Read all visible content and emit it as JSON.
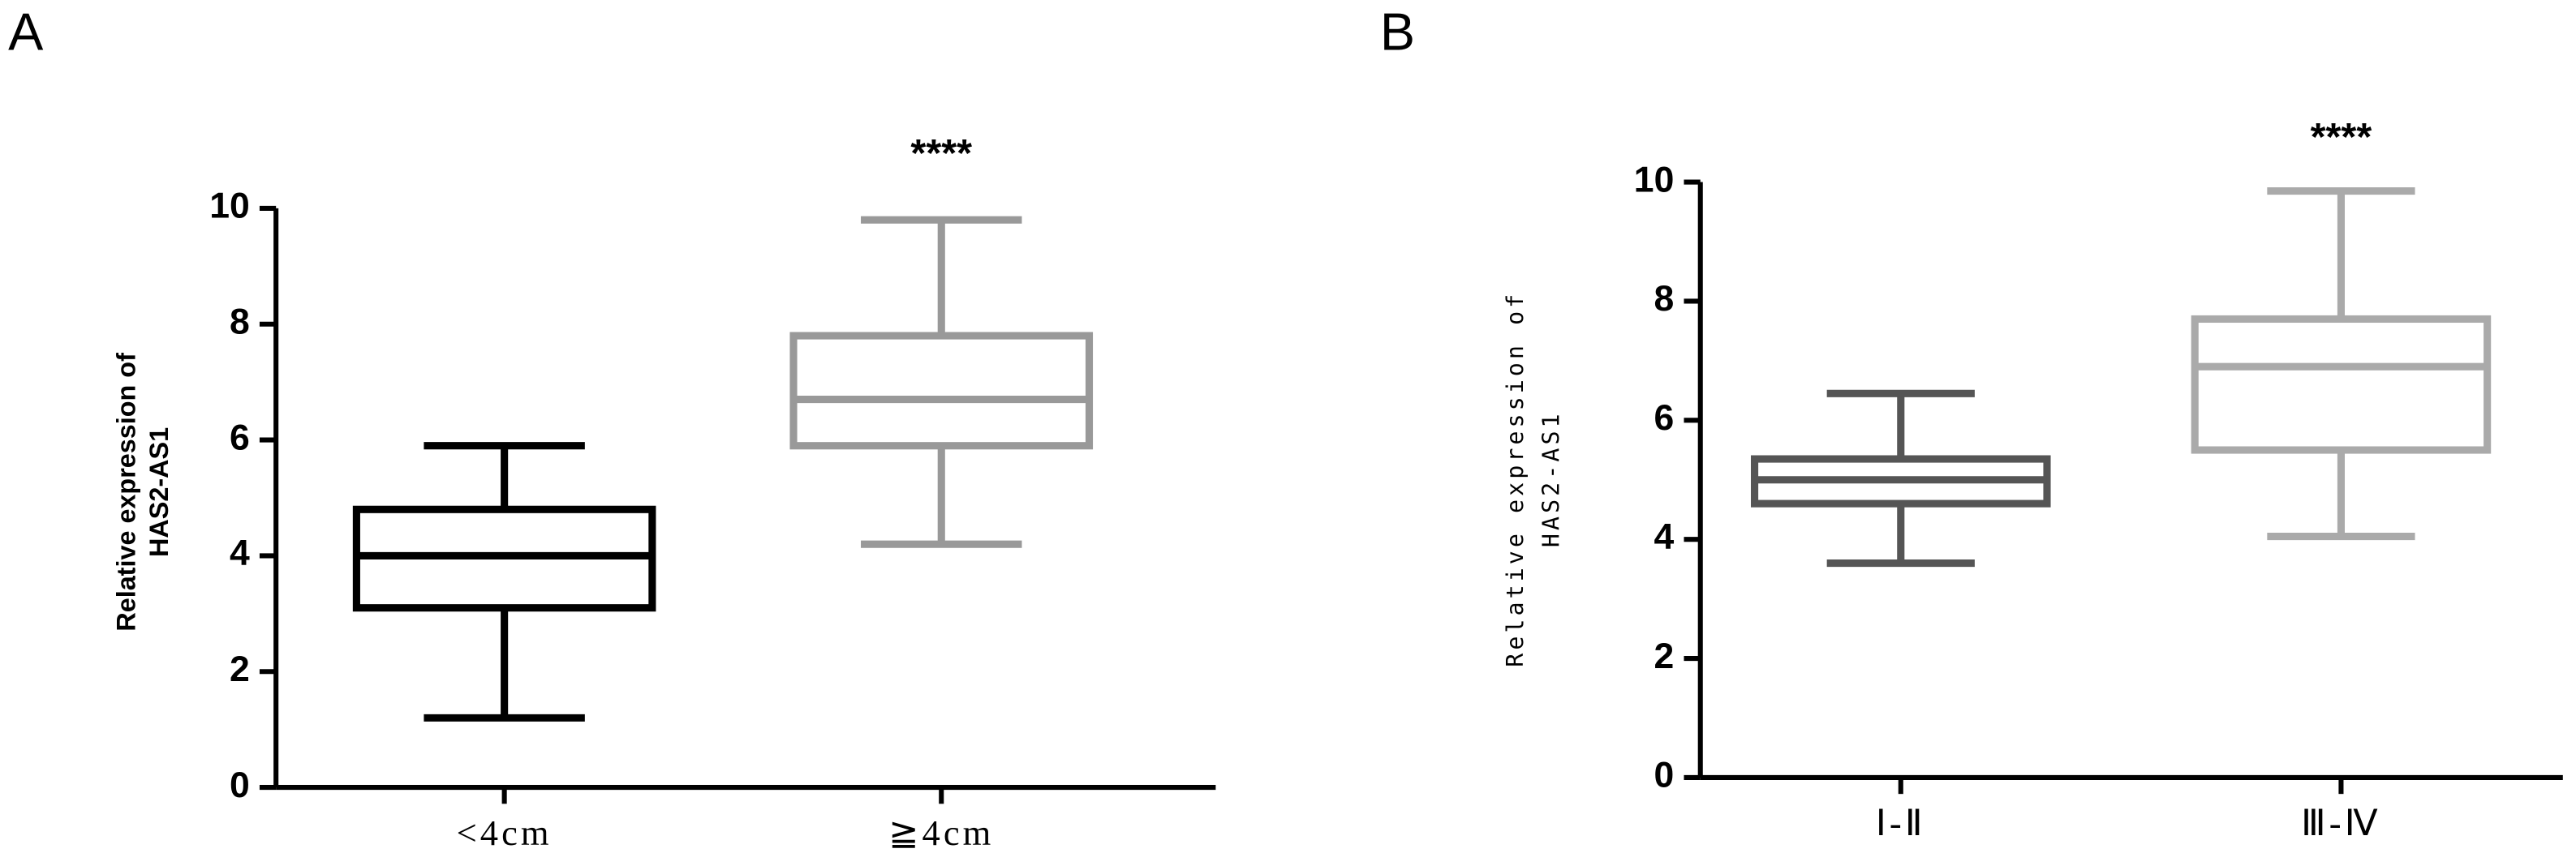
{
  "chart_data": [
    {
      "type": "box",
      "panel_label": "A",
      "annotation": "****",
      "ylabel": [
        "Relative expression of",
        "HAS2-AS1"
      ],
      "categories": [
        "<4cm",
        "≧4cm"
      ],
      "boxes": [
        {
          "min": 1.2,
          "q1": 3.1,
          "median": 4.0,
          "q3": 4.8,
          "max": 5.9,
          "color": "#000000"
        },
        {
          "min": 4.2,
          "q1": 5.9,
          "median": 6.7,
          "q3": 7.8,
          "max": 9.8,
          "color": "#999999"
        }
      ],
      "ylim": [
        0,
        10
      ],
      "yticks": [
        0,
        2,
        4,
        6,
        8,
        10
      ]
    },
    {
      "type": "box",
      "panel_label": "B",
      "annotation": "****",
      "ylabel": [
        "Relative expression of",
        "HAS2-AS1"
      ],
      "categories": [
        "Ⅰ-Ⅱ",
        "Ⅲ-Ⅳ"
      ],
      "boxes": [
        {
          "min": 3.6,
          "q1": 4.6,
          "median": 5.0,
          "q3": 5.35,
          "max": 6.45,
          "color": "#555555"
        },
        {
          "min": 4.05,
          "q1": 5.5,
          "median": 6.9,
          "q3": 7.7,
          "max": 9.85,
          "color": "#aaaaaa"
        }
      ],
      "ylim": [
        0,
        10
      ],
      "yticks": [
        0,
        2,
        4,
        6,
        8,
        10
      ]
    }
  ]
}
